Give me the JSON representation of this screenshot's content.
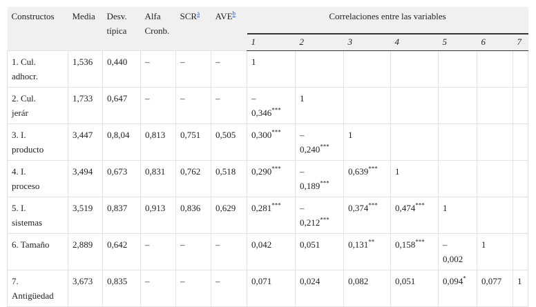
{
  "header": {
    "columns": [
      "Constructos",
      "Media",
      "Desv.\ntípica",
      "Alfa\nCronb.",
      {
        "text": "SCR",
        "sup": "a"
      },
      {
        "text": "AVE",
        "sup": "b"
      }
    ],
    "group": "Correlaciones entre las variables",
    "subcolumns": [
      "1",
      "2",
      "3",
      "4",
      "5",
      "6",
      "7"
    ]
  },
  "rows": [
    [
      "1. Cul.\nadhocr.",
      "1,536",
      "0,440",
      "–",
      "–",
      "–",
      "1"
    ],
    [
      "2. Cul.\njerár",
      "1,733",
      "0,647",
      "–",
      "–",
      "–",
      {
        "text": "–\n0,346",
        "sup": "***"
      },
      "1"
    ],
    [
      "3. I.\nproducto",
      "3,447",
      "0,8,04",
      "0,813",
      "0,751",
      "0,505",
      {
        "text": "0,300",
        "sup": "***"
      },
      {
        "text": "–\n0,240",
        "sup": "***"
      },
      "1"
    ],
    [
      "4. I.\nproceso",
      "3,494",
      "0,673",
      "0,831",
      "0,762",
      "0,518",
      {
        "text": "0,290",
        "sup": "***"
      },
      {
        "text": "–\n0,189",
        "sup": "***"
      },
      {
        "text": "0,639",
        "sup": "***"
      },
      "1"
    ],
    [
      "5. I.\nsistemas",
      "3,519",
      "0,837",
      "0,913",
      "0,836",
      "0,629",
      {
        "text": "0,281",
        "sup": "***"
      },
      {
        "text": "–\n0,212",
        "sup": "***"
      },
      {
        "text": "0,374",
        "sup": "***"
      },
      {
        "text": "0,474",
        "sup": "***"
      },
      "1"
    ],
    [
      "6. Tamaño",
      "2,889",
      "0,642",
      "–",
      "–",
      "–",
      "0,042",
      "0,051",
      {
        "text": "0,131",
        "sup": "**"
      },
      {
        "text": "0,158",
        "sup": "***"
      },
      "–\n0,002",
      "1"
    ],
    [
      "7.\nAntigüedad",
      "3,673",
      "0,835",
      "–",
      "–",
      "–",
      "0,071",
      "0,024",
      "0,082",
      "0,051",
      {
        "text": "0,094",
        "sup": "*"
      },
      "0,077",
      "1"
    ]
  ]
}
